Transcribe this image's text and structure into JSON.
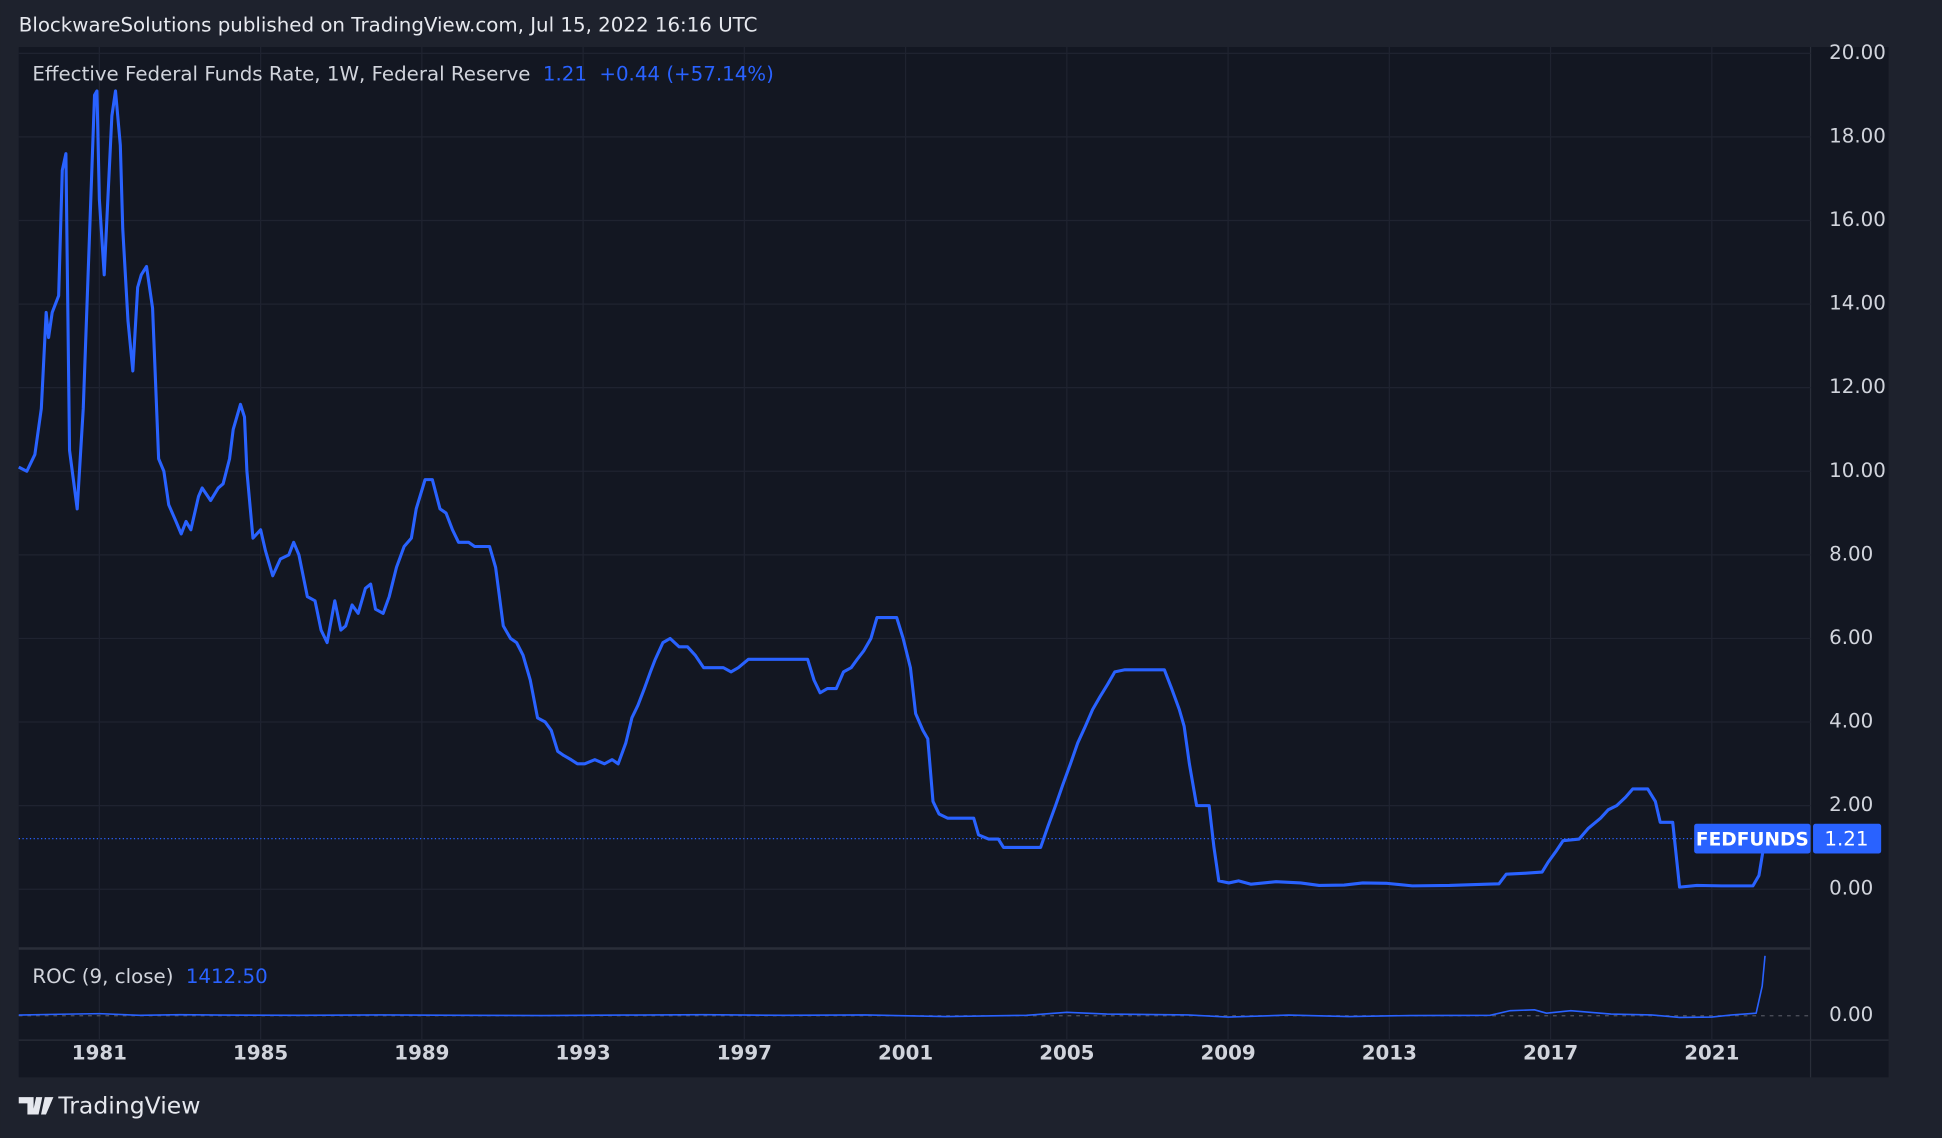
{
  "header": "BlockwareSolutions published on TradingView.com, Jul 15, 2022 16:16 UTC",
  "footer": "TradingView",
  "chart_data": [
    {
      "type": "line",
      "legend_name": "Effective Federal Funds Rate, 1W, Federal Reserve",
      "last_value": "1.21",
      "change": "+0.44 (+57.14%)",
      "symbol_tag": "FEDFUNDS",
      "price_tag": "1.21",
      "last_line": 1.21,
      "color": "#2962ff",
      "xlim": [
        1979.0,
        2023.45
      ],
      "ylim": [
        -1.39,
        20.15
      ],
      "xticks": [
        1981,
        1985,
        1989,
        1993,
        1997,
        2001,
        2005,
        2009,
        2013,
        2017,
        2021
      ],
      "yticks": [
        {
          "value": 0,
          "label": "0.00"
        },
        {
          "value": 2,
          "label": "2.00"
        },
        {
          "value": 4,
          "label": "4.00"
        },
        {
          "value": 6,
          "label": "6.00"
        },
        {
          "value": 8,
          "label": "8.00"
        },
        {
          "value": 10,
          "label": "10.00"
        },
        {
          "value": 12,
          "label": "12.00"
        },
        {
          "value": 14,
          "label": "14.00"
        },
        {
          "value": 16,
          "label": "16.00"
        },
        {
          "value": 18,
          "label": "18.00"
        },
        {
          "value": 20,
          "label": "20.00"
        }
      ],
      "grid": true,
      "x": [
        1979.0,
        1979.2,
        1979.4,
        1979.56,
        1979.68,
        1979.74,
        1979.83,
        1979.99,
        1980.08,
        1980.17,
        1980.26,
        1980.45,
        1980.6,
        1980.75,
        1980.88,
        1980.94,
        1981.0,
        1981.12,
        1981.31,
        1981.4,
        1981.52,
        1981.58,
        1981.71,
        1981.83,
        1981.95,
        1982.04,
        1982.17,
        1982.32,
        1982.47,
        1982.6,
        1982.72,
        1982.9,
        1983.03,
        1983.15,
        1983.27,
        1983.46,
        1983.55,
        1983.76,
        1983.95,
        1984.07,
        1984.23,
        1984.32,
        1984.5,
        1984.6,
        1984.66,
        1984.81,
        1985.0,
        1985.12,
        1985.3,
        1985.49,
        1985.7,
        1985.82,
        1985.95,
        1986.16,
        1986.35,
        1986.5,
        1986.65,
        1986.84,
        1986.99,
        1987.11,
        1987.27,
        1987.42,
        1987.6,
        1987.73,
        1987.85,
        1988.04,
        1988.19,
        1988.37,
        1988.56,
        1988.74,
        1988.86,
        1989.08,
        1989.26,
        1989.45,
        1989.6,
        1989.76,
        1989.91,
        1990.16,
        1990.31,
        1990.46,
        1990.68,
        1990.83,
        1991.02,
        1991.2,
        1991.35,
        1991.51,
        1991.69,
        1991.87,
        1992.06,
        1992.21,
        1992.37,
        1992.52,
        1992.7,
        1992.86,
        1993.04,
        1993.29,
        1993.53,
        1993.72,
        1993.87,
        1994.06,
        1994.21,
        1994.36,
        1994.52,
        1994.67,
        1994.79,
        1994.98,
        1995.16,
        1995.38,
        1995.59,
        1995.78,
        1995.99,
        1996.21,
        1996.48,
        1996.67,
        1996.85,
        1997.1,
        1997.44,
        1997.74,
        1998.05,
        1998.36,
        1998.57,
        1998.73,
        1998.88,
        1999.06,
        1999.28,
        1999.46,
        1999.65,
        1999.8,
        1999.96,
        2000.14,
        2000.29,
        2000.51,
        2000.78,
        2000.94,
        2001.12,
        2001.25,
        2001.43,
        2001.55,
        2001.68,
        2001.83,
        2002.04,
        2002.35,
        2002.69,
        2002.81,
        2003.06,
        2003.3,
        2003.43,
        2003.73,
        2004.04,
        2004.35,
        2004.53,
        2004.72,
        2004.9,
        2005.09,
        2005.27,
        2005.46,
        2005.64,
        2005.82,
        2006.01,
        2006.19,
        2006.44,
        2006.81,
        2007.11,
        2007.42,
        2007.6,
        2007.79,
        2007.91,
        2008.04,
        2008.22,
        2008.53,
        2008.65,
        2008.77,
        2009.02,
        2009.26,
        2009.57,
        2010.19,
        2010.8,
        2011.26,
        2011.88,
        2012.34,
        2012.95,
        2013.57,
        2014.49,
        2015.41,
        2015.72,
        2015.9,
        2016.33,
        2016.79,
        2016.95,
        2017.13,
        2017.31,
        2017.71,
        2017.93,
        2018.24,
        2018.43,
        2018.64,
        2018.86,
        2019.04,
        2019.41,
        2019.6,
        2019.72,
        2020.03,
        2020.2,
        2020.63,
        2021.25,
        2022.02,
        2022.17,
        2022.32
      ],
      "values": [
        10.1,
        10.0,
        10.4,
        11.5,
        13.8,
        13.2,
        13.8,
        14.2,
        17.2,
        17.6,
        10.5,
        9.1,
        11.5,
        15.5,
        19.0,
        19.1,
        16.5,
        14.7,
        18.5,
        19.1,
        17.8,
        15.8,
        13.6,
        12.4,
        14.4,
        14.7,
        14.9,
        13.9,
        10.3,
        10.0,
        9.2,
        8.8,
        8.5,
        8.8,
        8.6,
        9.4,
        9.6,
        9.3,
        9.6,
        9.7,
        10.3,
        11.0,
        11.6,
        11.3,
        10.0,
        8.4,
        8.6,
        8.1,
        7.5,
        7.9,
        8.0,
        8.3,
        8.0,
        7.0,
        6.9,
        6.2,
        5.9,
        6.9,
        6.2,
        6.3,
        6.8,
        6.6,
        7.2,
        7.3,
        6.7,
        6.6,
        7.0,
        7.7,
        8.2,
        8.4,
        9.1,
        9.8,
        9.8,
        9.1,
        9.0,
        8.6,
        8.3,
        8.3,
        8.2,
        8.2,
        8.2,
        7.7,
        6.3,
        6.0,
        5.9,
        5.6,
        5.0,
        4.1,
        4.0,
        3.8,
        3.3,
        3.2,
        3.1,
        3.0,
        3.0,
        3.1,
        3.0,
        3.1,
        3.0,
        3.5,
        4.1,
        4.4,
        4.8,
        5.2,
        5.5,
        5.9,
        6.0,
        5.8,
        5.8,
        5.6,
        5.3,
        5.3,
        5.3,
        5.2,
        5.3,
        5.5,
        5.5,
        5.5,
        5.5,
        5.5,
        5.5,
        5.0,
        4.7,
        4.8,
        4.8,
        5.2,
        5.3,
        5.5,
        5.7,
        6.0,
        6.5,
        6.5,
        6.5,
        6.0,
        5.3,
        4.2,
        3.8,
        3.6,
        2.1,
        1.8,
        1.7,
        1.7,
        1.7,
        1.3,
        1.2,
        1.2,
        1.0,
        1.0,
        1.0,
        1.0,
        1.5,
        2.0,
        2.5,
        3.0,
        3.5,
        3.9,
        4.3,
        4.6,
        4.9,
        5.2,
        5.25,
        5.25,
        5.25,
        5.25,
        4.8,
        4.3,
        3.9,
        3.0,
        2.0,
        2.0,
        1.0,
        0.2,
        0.15,
        0.2,
        0.12,
        0.18,
        0.15,
        0.09,
        0.1,
        0.15,
        0.14,
        0.08,
        0.09,
        0.12,
        0.13,
        0.36,
        0.38,
        0.41,
        0.66,
        0.9,
        1.16,
        1.2,
        1.45,
        1.7,
        1.9,
        2.0,
        2.2,
        2.4,
        2.4,
        2.1,
        1.6,
        1.6,
        0.05,
        0.09,
        0.08,
        0.08,
        0.33,
        1.21
      ]
    },
    {
      "type": "line",
      "legend_name": "ROC (9, close)",
      "last_value": "1412.50",
      "color": "#2962ff",
      "xlim": [
        1979.0,
        2023.45
      ],
      "ylim": [
        -576,
        1555
      ],
      "yticks": [
        {
          "value": 0,
          "label": "0.00"
        }
      ],
      "x": [
        1979.0,
        1980.0,
        1981.0,
        1982.0,
        1983.0,
        1984.0,
        1986.0,
        1988.0,
        1990.0,
        1992.0,
        1994.0,
        1996.0,
        1998.0,
        2000.0,
        2002.0,
        2004.0,
        2005.0,
        2006.0,
        2008.0,
        2009.0,
        2010.5,
        2012.0,
        2013.5,
        2015.5,
        2016.0,
        2016.6,
        2016.9,
        2017.5,
        2018.5,
        2019.5,
        2020.2,
        2021.0,
        2021.5,
        2022.1,
        2022.25,
        2022.32
      ],
      "values": [
        15,
        35,
        50,
        10,
        25,
        15,
        10,
        20,
        10,
        5,
        15,
        25,
        10,
        20,
        -20,
        10,
        80,
        40,
        20,
        -30,
        15,
        -20,
        5,
        10,
        120,
        140,
        60,
        120,
        40,
        20,
        -40,
        -30,
        20,
        60,
        700,
        1412.5
      ]
    }
  ]
}
